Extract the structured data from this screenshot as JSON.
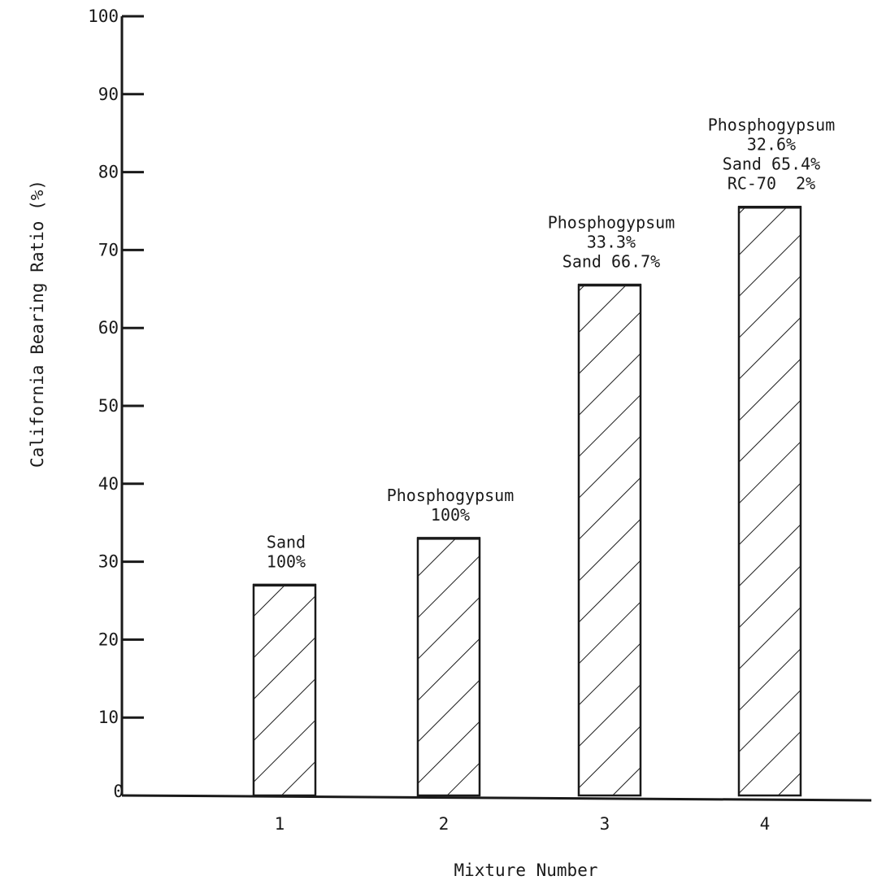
{
  "chart_data": {
    "type": "bar",
    "xlabel": "Mixture Number",
    "ylabel": "California Bearing Ratio (%)",
    "ylim": [
      0,
      100
    ],
    "yticks": [
      "0",
      "10",
      "20",
      "30",
      "40",
      "50",
      "60",
      "70",
      "80",
      "90",
      "100"
    ],
    "categories": [
      "1",
      "2",
      "3",
      "4"
    ],
    "values": [
      27,
      33,
      65.5,
      75.5
    ],
    "bar_fill": "diagonal hatch",
    "bar_labels": [
      [
        "Sand",
        "100%"
      ],
      [
        "Phosphogypsum",
        "100%"
      ],
      [
        "Phosphogypsum",
        "33.3%",
        "Sand 66.7%"
      ],
      [
        "Phosphogypsum",
        "32.6%",
        "Sand 65.4%",
        "RC-70  2%"
      ]
    ],
    "grid": false,
    "legend": "none"
  },
  "colors": {
    "ink": "#1a1a1a",
    "background": "#ffffff"
  }
}
